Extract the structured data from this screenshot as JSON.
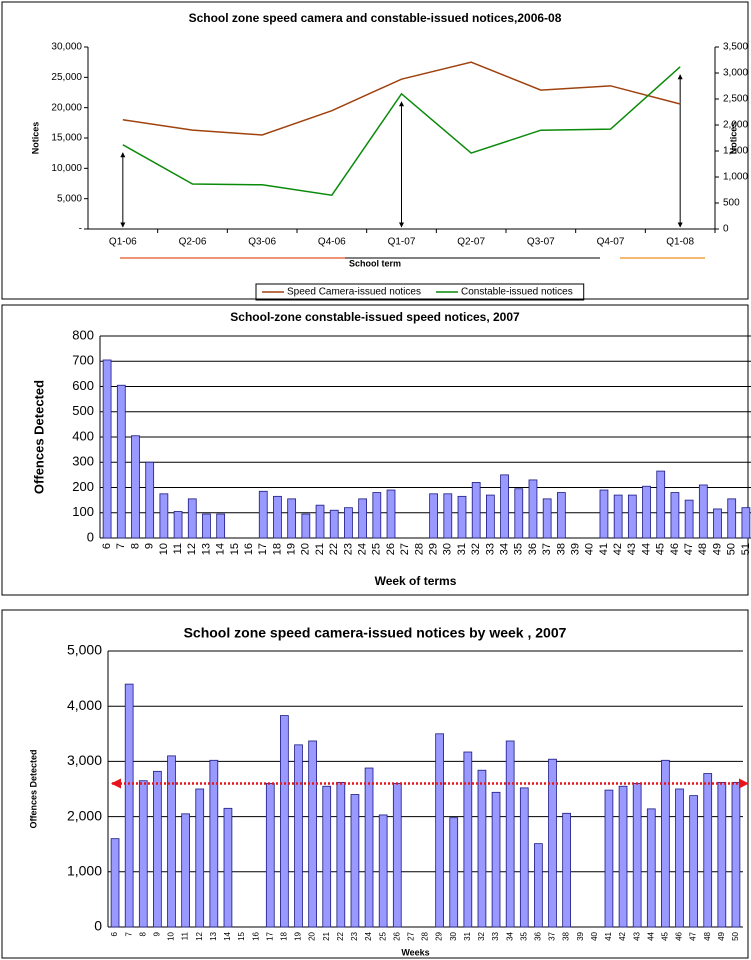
{
  "chart_data": [
    {
      "type": "line",
      "title": "School zone speed camera and constable-issued notices,2006-08",
      "xlabel": "School term",
      "ylabel": "Notices",
      "y2label": "Notices",
      "categories": [
        "Q1-06",
        "Q2-06",
        "Q3-06",
        "Q4-06",
        "Q1-07",
        "Q2-07",
        "Q3-07",
        "Q4-07",
        "Q1-08"
      ],
      "series": [
        {
          "name": "Speed Camera-issued notices",
          "color": "#a0420e",
          "values": [
            18000,
            16300,
            15500,
            19500,
            24700,
            27500,
            22900,
            23600,
            20600
          ]
        },
        {
          "name": "Constable-issued notices",
          "color": "#0a8a0a",
          "axis": "y2",
          "values": [
            1620,
            865,
            850,
            650,
            2600,
            1460,
            1900,
            1920,
            3120
          ]
        }
      ],
      "ylim": [
        0,
        30000
      ],
      "yticks": [
        {
          "value": 0,
          "label": "-"
        },
        {
          "value": 5000,
          "label": "5,000"
        },
        {
          "value": 10000,
          "label": "10,000"
        },
        {
          "value": 15000,
          "label": "15,000"
        },
        {
          "value": 20000,
          "label": "20,000"
        },
        {
          "value": 25000,
          "label": "25,000"
        },
        {
          "value": 30000,
          "label": "30,000"
        }
      ],
      "y2lim": [
        0,
        3500
      ],
      "y2ticks": [
        0,
        500,
        {
          "value": 1000,
          "label": "1,000"
        },
        {
          "value": 1500,
          "label": "1,500"
        },
        {
          "value": 2000,
          "label": "2,000"
        },
        {
          "value": 2500,
          "label": "2,500"
        },
        {
          "value": 3000,
          "label": "3,000"
        },
        {
          "value": 3500,
          "label": "3,500"
        }
      ],
      "grid": false,
      "legend": "bottom"
    },
    {
      "type": "bar",
      "title": "School-zone constable-issued speed notices, 2007",
      "xlabel": "Week of terms",
      "ylabel": "Offences Detected",
      "categories": [
        "6",
        "7",
        "8",
        "9",
        "10",
        "11",
        "12",
        "13",
        "14",
        "15",
        "16",
        "17",
        "18",
        "19",
        "20",
        "21",
        "22",
        "23",
        "24",
        "25",
        "26",
        "27",
        "28",
        "29",
        "30",
        "31",
        "32",
        "33",
        "34",
        "35",
        "36",
        "37",
        "38",
        "39",
        "40",
        "41",
        "42",
        "43",
        "44",
        "45",
        "46",
        "47",
        "48",
        "49",
        "50",
        "51"
      ],
      "values": [
        705,
        605,
        405,
        300,
        175,
        105,
        155,
        95,
        95,
        null,
        null,
        185,
        165,
        155,
        95,
        130,
        110,
        120,
        155,
        180,
        190,
        null,
        null,
        175,
        175,
        165,
        220,
        170,
        250,
        195,
        230,
        155,
        180,
        null,
        null,
        190,
        170,
        170,
        205,
        265,
        180,
        150,
        210,
        115,
        155,
        120
      ],
      "color": "#9999ff",
      "ylim": [
        0,
        800
      ],
      "yticks": [
        0,
        100,
        200,
        300,
        400,
        500,
        600,
        700,
        800
      ],
      "grid": true
    },
    {
      "type": "bar",
      "title": "School zone speed camera-issued notices by week , 2007",
      "xlabel": "Weeks",
      "ylabel": "Offences Detected",
      "categories": [
        "6",
        "7",
        "8",
        "9",
        "10",
        "11",
        "12",
        "13",
        "14",
        "15",
        "16",
        "17",
        "18",
        "19",
        "20",
        "21",
        "22",
        "23",
        "24",
        "25",
        "26",
        "27",
        "28",
        "29",
        "30",
        "31",
        "32",
        "33",
        "34",
        "35",
        "36",
        "37",
        "38",
        "39",
        "40",
        "41",
        "42",
        "43",
        "44",
        "45",
        "46",
        "47",
        "48",
        "49",
        "50"
      ],
      "values": [
        1600,
        4400,
        2650,
        2820,
        3100,
        2050,
        2500,
        3020,
        2150,
        null,
        null,
        2600,
        3830,
        3300,
        3370,
        2550,
        2620,
        2400,
        2880,
        2030,
        2600,
        null,
        null,
        3500,
        1980,
        3170,
        2840,
        2440,
        3370,
        2520,
        1510,
        3040,
        2060,
        null,
        null,
        2480,
        2550,
        2600,
        2140,
        3020,
        2500,
        2380,
        2780,
        2620,
        2620
      ],
      "color": "#9999ff",
      "ylim": [
        0,
        5000
      ],
      "yticks": [
        0,
        {
          "value": 1000,
          "label": "1,000"
        },
        {
          "value": 2000,
          "label": "2,000"
        },
        {
          "value": 3000,
          "label": "3,000"
        },
        {
          "value": 4000,
          "label": "4,000"
        },
        {
          "value": 5000,
          "label": "5,000"
        }
      ],
      "grid": true,
      "reference_line": {
        "value": 2600,
        "color": "#e8141b"
      }
    }
  ]
}
